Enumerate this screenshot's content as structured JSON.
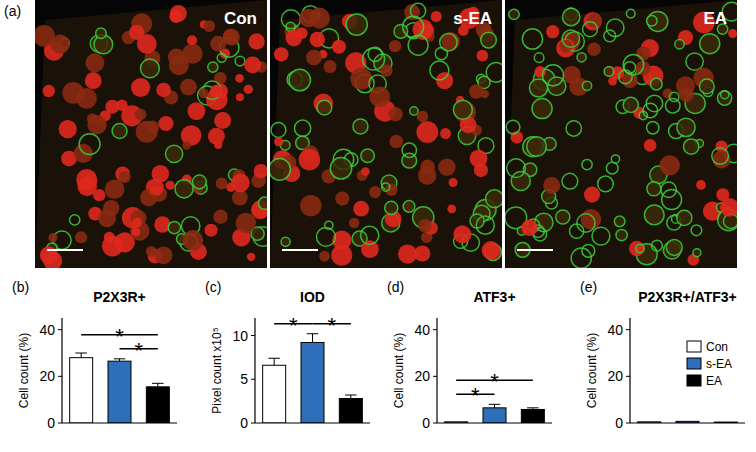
{
  "panel_a": {
    "label": "(a)",
    "images": [
      "Con",
      "s-EA",
      "EA"
    ]
  },
  "chart_data": [
    {
      "type": "bar",
      "panel": "(b)",
      "title": "P2X3R+",
      "y_label": "Cell count (%)",
      "categories": [
        "Con",
        "s-EA",
        "EA"
      ],
      "values": [
        28,
        26.5,
        15.5
      ],
      "error": [
        2,
        1,
        1.5
      ],
      "colors": [
        "#ffffff",
        "#2e6fba",
        "#000000"
      ],
      "ylim": [
        0,
        45
      ],
      "yticks": [
        0,
        20,
        40
      ],
      "significance": [
        {
          "pair": [
            "Con",
            "EA"
          ],
          "label": "*"
        },
        {
          "pair": [
            "s-EA",
            "EA"
          ],
          "label": "*"
        }
      ]
    },
    {
      "type": "bar",
      "panel": "(c)",
      "title": "IOD",
      "y_label": "Pixel count x10⁵",
      "categories": [
        "Con",
        "s-EA",
        "EA"
      ],
      "values": [
        6.6,
        9.2,
        2.8
      ],
      "error": [
        0.8,
        1,
        0.4
      ],
      "colors": [
        "#ffffff",
        "#2e6fba",
        "#000000"
      ],
      "ylim": [
        0,
        12
      ],
      "yticks": [
        0,
        5,
        10
      ],
      "significance": [
        {
          "pair": [
            "Con",
            "s-EA"
          ],
          "label": "*"
        },
        {
          "pair": [
            "s-EA",
            "EA"
          ],
          "label": "*"
        }
      ]
    },
    {
      "type": "bar",
      "panel": "(d)",
      "title": "ATF3+",
      "y_label": "Cell count (%)",
      "categories": [
        "Con",
        "s-EA",
        "EA"
      ],
      "values": [
        0.5,
        6.5,
        5.8
      ],
      "error": [
        0,
        1.5,
        0.7
      ],
      "colors": [
        "#ffffff",
        "#2e6fba",
        "#000000"
      ],
      "ylim": [
        0,
        45
      ],
      "yticks": [
        0,
        20,
        40
      ],
      "significance": [
        {
          "pair": [
            "Con",
            "EA"
          ],
          "label": "*"
        },
        {
          "pair": [
            "Con",
            "s-EA"
          ],
          "label": "*"
        }
      ]
    },
    {
      "type": "bar",
      "panel": "(e)",
      "title": "P2X3R+/ATF3+",
      "y_label": "Cell count (%)",
      "categories": [
        "Con",
        "s-EA",
        "EA"
      ],
      "values": [
        0.5,
        0.7,
        0.4
      ],
      "error": [
        0,
        0,
        0
      ],
      "colors": [
        "#ffffff",
        "#2e6fba",
        "#000000"
      ],
      "ylim": [
        0,
        45
      ],
      "yticks": [
        0,
        20,
        40
      ],
      "legend": "top-right",
      "significance": []
    }
  ]
}
